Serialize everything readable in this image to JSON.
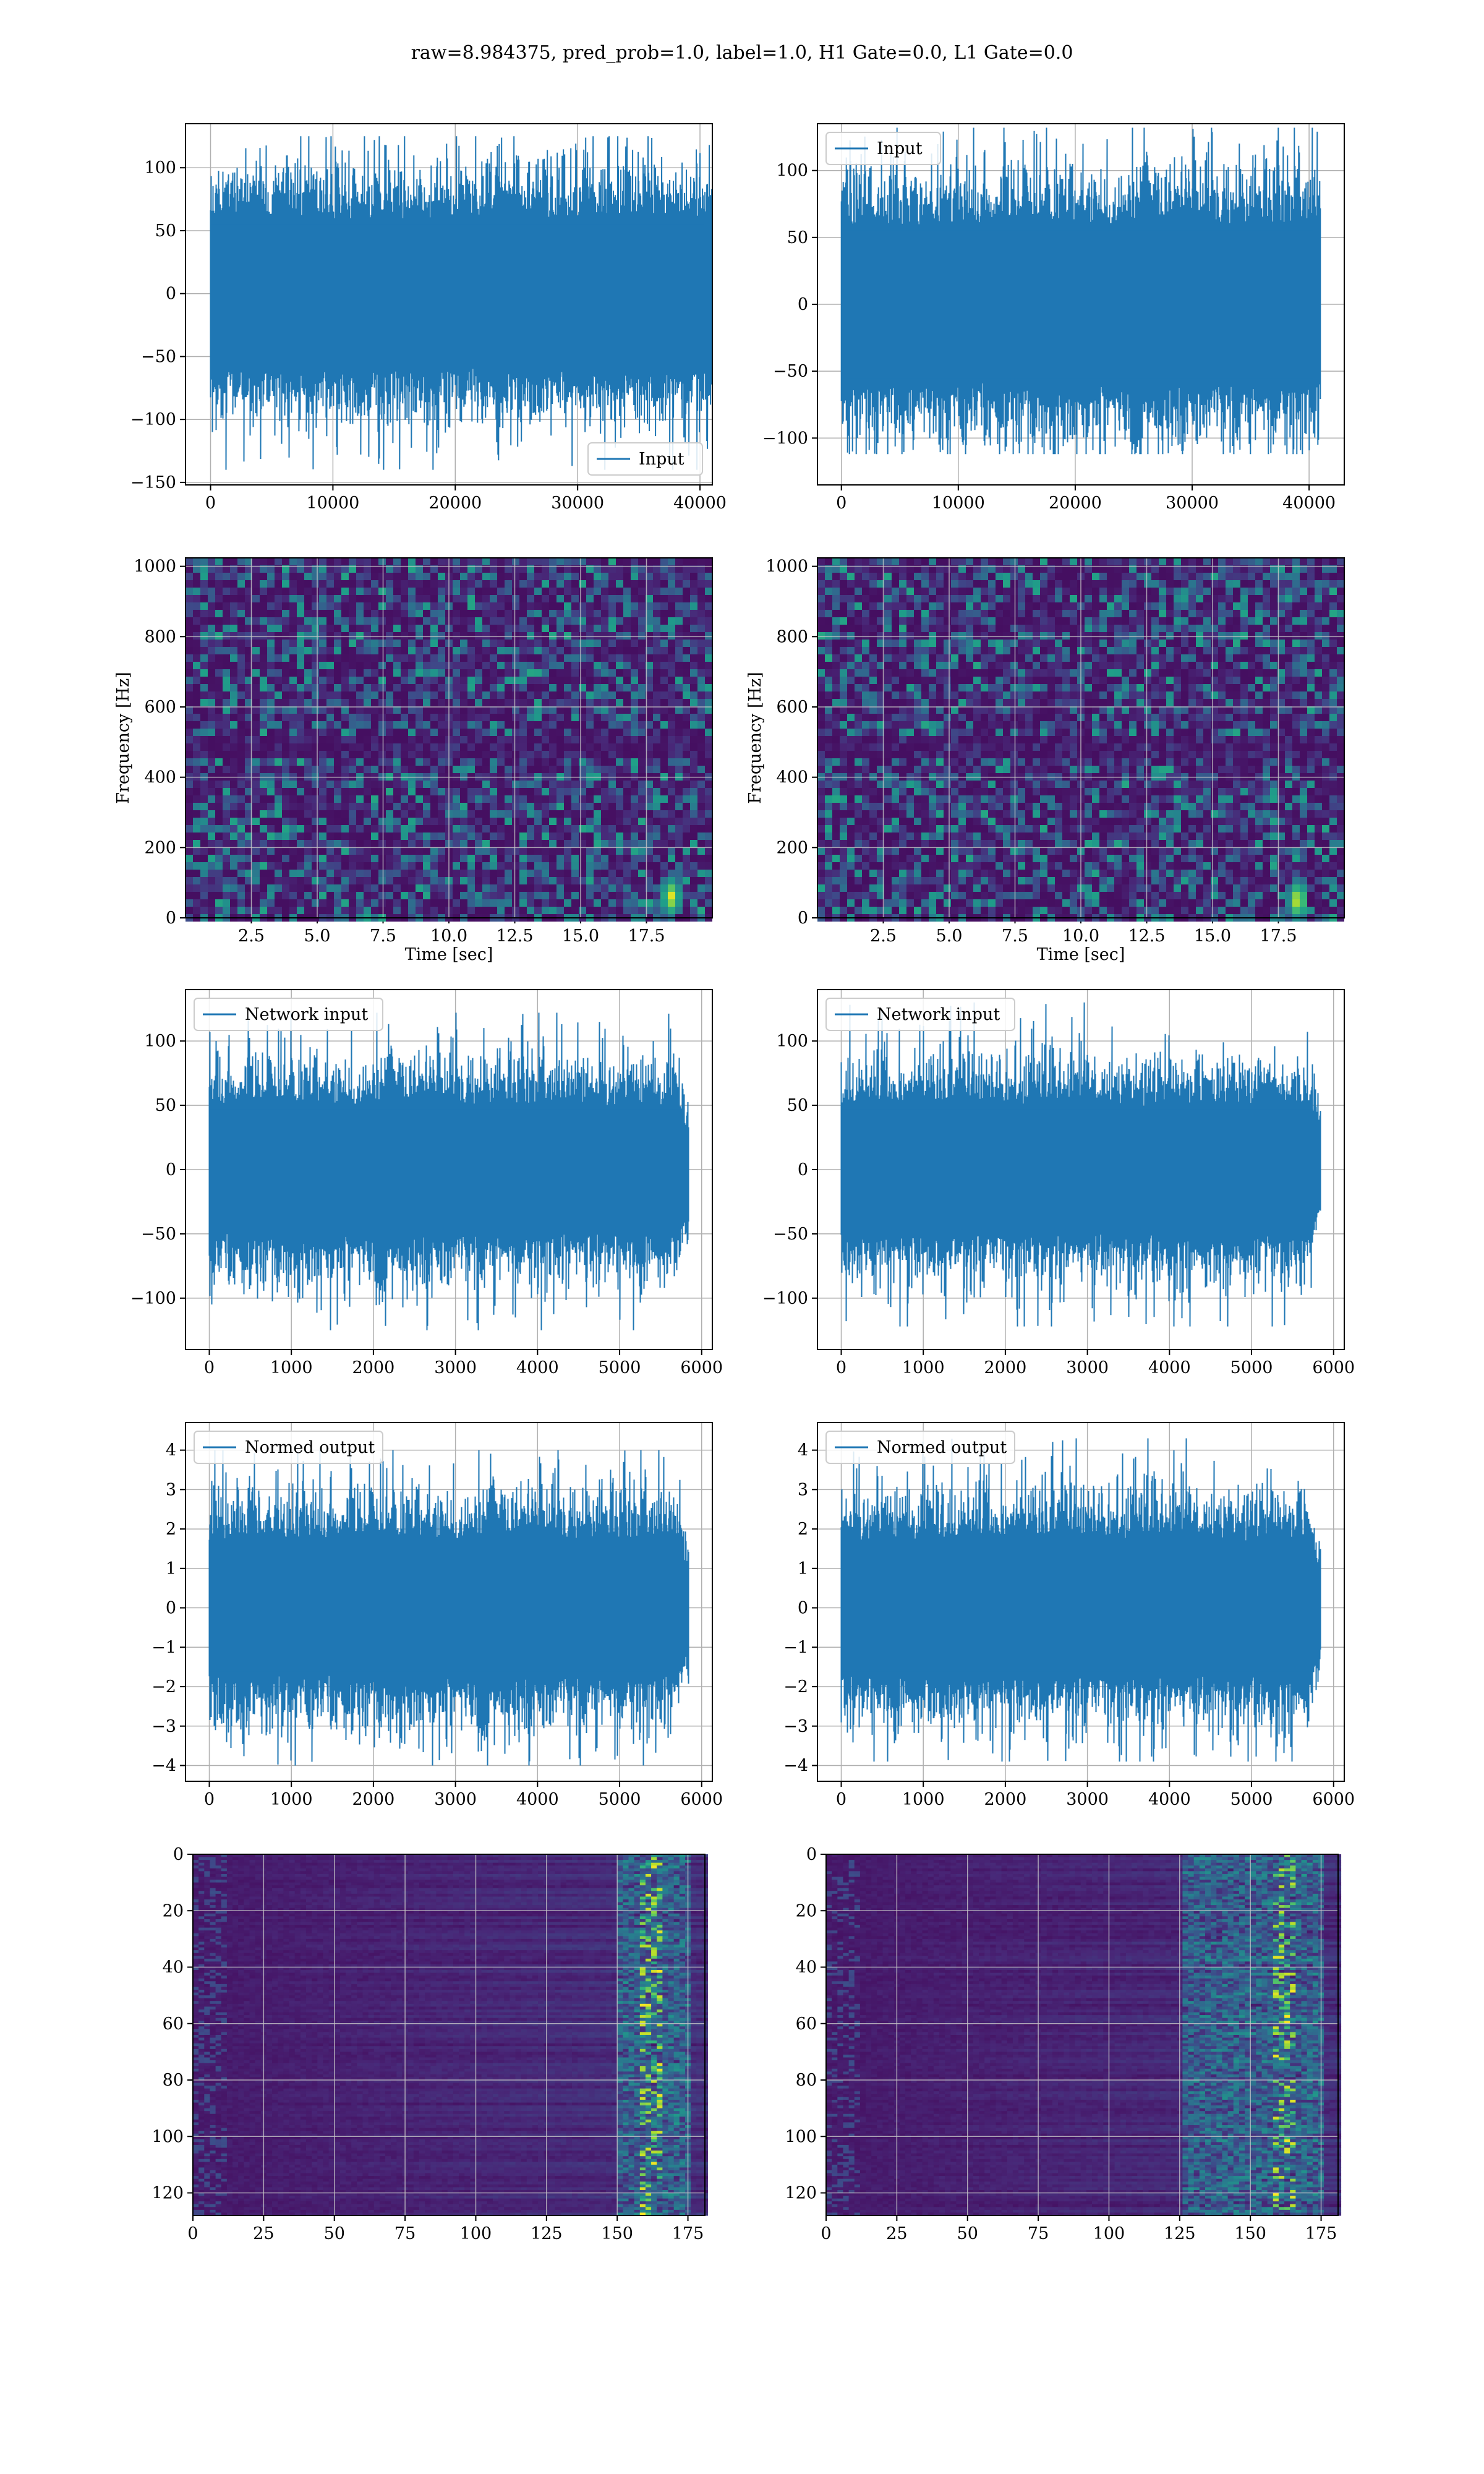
{
  "figure_title": "raw=8.984375, pred_prob=1.0, label=1.0, H1 Gate=0.0, L1 Gate=0.0",
  "colors": {
    "line": "#1f77b4",
    "grid": "#b0b0b0",
    "viridis_dark": "#440154",
    "viridis_bright": "#b5de2b"
  },
  "chart_data": [
    {
      "type": "line",
      "panel": "row1-left",
      "series": [
        {
          "name": "Input",
          "n_points": 40960
        }
      ],
      "legend_placement": "lower-right",
      "xlim": [
        -2048,
        41008
      ],
      "ylim": [
        -152,
        135
      ],
      "xticks": [
        0,
        10000,
        20000,
        30000,
        40000
      ],
      "yticks": [
        -150,
        -100,
        -50,
        0,
        50,
        100
      ],
      "amplitude": {
        "typical": 65,
        "peak": 125,
        "min": -140
      },
      "grid": true
    },
    {
      "type": "line",
      "panel": "row1-right",
      "series": [
        {
          "name": "Input",
          "n_points": 40960
        }
      ],
      "legend_placement": "upper-left",
      "xlim": [
        -2048,
        43008
      ],
      "ylim": [
        -135,
        135
      ],
      "xticks": [
        0,
        10000,
        20000,
        30000,
        40000
      ],
      "yticks": [
        -100,
        -50,
        0,
        50,
        100
      ],
      "amplitude": {
        "typical": 65,
        "peak": 132,
        "min": -112
      },
      "grid": true
    },
    {
      "type": "heatmap",
      "panel": "row2-left",
      "xlabel": "Time [sec]",
      "ylabel": "Frequency [Hz]",
      "xlim": [
        0,
        20
      ],
      "ylim": [
        0,
        1024
      ],
      "xticks": [
        2.5,
        5.0,
        7.5,
        10.0,
        12.5,
        15.0,
        17.5
      ],
      "yticks": [
        0,
        200,
        400,
        600,
        800,
        1000
      ],
      "colormap": "viridis",
      "hotspot": {
        "time_sec": 18.3,
        "freq_hz": 70
      },
      "grid": true
    },
    {
      "type": "heatmap",
      "panel": "row2-right",
      "xlabel": "Time [sec]",
      "ylabel": "Frequency [Hz]",
      "xlim": [
        0,
        20
      ],
      "ylim": [
        0,
        1024
      ],
      "xticks": [
        2.5,
        5.0,
        7.5,
        10.0,
        12.5,
        15.0,
        17.5
      ],
      "yticks": [
        0,
        200,
        400,
        600,
        800,
        1000
      ],
      "colormap": "viridis",
      "hotspot": {
        "time_sec": 18.1,
        "freq_hz": 60
      },
      "grid": true
    },
    {
      "type": "line",
      "panel": "row3-left",
      "series": [
        {
          "name": "Network input",
          "n_points": 5840
        }
      ],
      "legend_placement": "upper-left",
      "xlim": [
        -290,
        6130
      ],
      "ylim": [
        -140,
        140
      ],
      "xticks": [
        0,
        1000,
        2000,
        3000,
        4000,
        5000,
        6000
      ],
      "yticks": [
        -100,
        -50,
        0,
        50,
        100
      ],
      "amplitude": {
        "typical": 55,
        "peak": 122,
        "min": -125
      },
      "grid": true
    },
    {
      "type": "line",
      "panel": "row3-right",
      "series": [
        {
          "name": "Network input",
          "n_points": 5840
        }
      ],
      "legend_placement": "upper-left",
      "xlim": [
        -290,
        6130
      ],
      "ylim": [
        -140,
        140
      ],
      "xticks": [
        0,
        1000,
        2000,
        3000,
        4000,
        5000,
        6000
      ],
      "yticks": [
        -100,
        -50,
        0,
        50,
        100
      ],
      "amplitude": {
        "typical": 55,
        "peak": 130,
        "min": -122
      },
      "grid": true
    },
    {
      "type": "line",
      "panel": "row4-left",
      "series": [
        {
          "name": "Normed output",
          "n_points": 5840
        }
      ],
      "legend_placement": "upper-left",
      "xlim": [
        -290,
        6130
      ],
      "ylim": [
        -4.4,
        4.7
      ],
      "xticks": [
        0,
        1000,
        2000,
        3000,
        4000,
        5000,
        6000
      ],
      "yticks": [
        -4,
        -3,
        -2,
        -1,
        0,
        1,
        2,
        3,
        4
      ],
      "amplitude": {
        "typical": 1.9,
        "peak": 4.0,
        "min": -4.0
      },
      "grid": true
    },
    {
      "type": "line",
      "panel": "row4-right",
      "series": [
        {
          "name": "Normed output",
          "n_points": 5840
        }
      ],
      "legend_placement": "upper-left",
      "xlim": [
        -290,
        6130
      ],
      "ylim": [
        -4.4,
        4.7
      ],
      "xticks": [
        0,
        1000,
        2000,
        3000,
        4000,
        5000,
        6000
      ],
      "yticks": [
        -4,
        -3,
        -2,
        -1,
        0,
        1,
        2,
        3,
        4
      ],
      "amplitude": {
        "typical": 1.9,
        "peak": 4.3,
        "min": -3.9
      },
      "grid": true
    },
    {
      "type": "heatmap",
      "panel": "row5-left",
      "xlim": [
        0,
        181
      ],
      "ylim": [
        128,
        0
      ],
      "xticks": [
        0,
        25,
        50,
        75,
        100,
        125,
        150,
        175
      ],
      "yticks": [
        0,
        20,
        40,
        60,
        80,
        100,
        120
      ],
      "colormap": "viridis",
      "active_columns": [
        150,
        165
      ],
      "grid": true
    },
    {
      "type": "heatmap",
      "panel": "row5-right",
      "xlim": [
        0,
        181
      ],
      "ylim": [
        128,
        0
      ],
      "xticks": [
        0,
        25,
        50,
        75,
        100,
        125,
        150,
        175
      ],
      "yticks": [
        0,
        20,
        40,
        60,
        80,
        100,
        120
      ],
      "colormap": "viridis",
      "active_columns": [
        125,
        165
      ],
      "grid": true
    }
  ]
}
